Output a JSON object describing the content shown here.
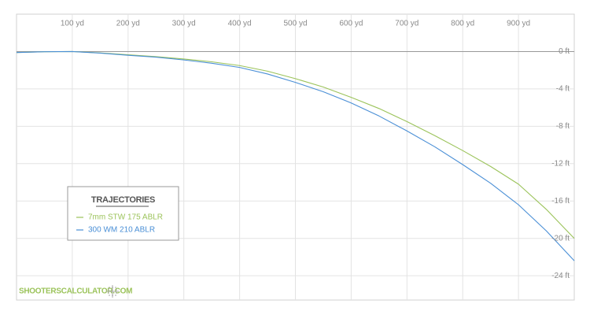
{
  "chart_data": {
    "type": "line",
    "x": [
      0,
      50,
      100,
      150,
      200,
      250,
      300,
      350,
      400,
      450,
      500,
      550,
      600,
      650,
      700,
      750,
      800,
      850,
      900,
      950,
      1000
    ],
    "series": [
      {
        "name": "7mm STW 175 ABLR",
        "color": "#9bc35a",
        "values": [
          -0.1,
          -0.02,
          0,
          -0.15,
          -0.35,
          -0.55,
          -0.8,
          -1.1,
          -1.5,
          -2.1,
          -2.9,
          -3.8,
          -4.9,
          -6.1,
          -7.5,
          -9.0,
          -10.6,
          -12.3,
          -14.2,
          -16.9,
          -20.0
        ]
      },
      {
        "name": "300 WM 210 ABLR",
        "color": "#4a8fd6",
        "values": [
          -0.1,
          -0.02,
          0,
          -0.17,
          -0.4,
          -0.6,
          -0.9,
          -1.25,
          -1.7,
          -2.4,
          -3.3,
          -4.3,
          -5.5,
          -6.9,
          -8.5,
          -10.2,
          -12.1,
          -14.1,
          -16.4,
          -19.2,
          -22.4
        ]
      }
    ],
    "xlim": [
      0,
      1000
    ],
    "xticks": [
      {
        "value": 100,
        "label": "100 yd"
      },
      {
        "value": 200,
        "label": "200 yd"
      },
      {
        "value": 300,
        "label": "300 yd"
      },
      {
        "value": 400,
        "label": "400 yd"
      },
      {
        "value": 500,
        "label": "500 yd"
      },
      {
        "value": 600,
        "label": "600 yd"
      },
      {
        "value": 700,
        "label": "700 yd"
      },
      {
        "value": 800,
        "label": "800 yd"
      },
      {
        "value": 900,
        "label": "900 yd"
      }
    ],
    "ylim": [
      -26.6,
      4
    ],
    "yticks": [
      {
        "value": 0,
        "label": "0 ft"
      },
      {
        "value": -4,
        "label": "-4 ft"
      },
      {
        "value": -8,
        "label": "-8 ft"
      },
      {
        "value": -12,
        "label": "-12 ft"
      },
      {
        "value": -16,
        "label": "-16 ft"
      },
      {
        "value": -20,
        "label": "-20 ft"
      },
      {
        "value": -24,
        "label": "-24 ft"
      }
    ],
    "grid": true,
    "legend": "center left",
    "legend_title": "TRAJECTORIES",
    "watermark": "SHOOTERSCALCULATOR.COM"
  }
}
